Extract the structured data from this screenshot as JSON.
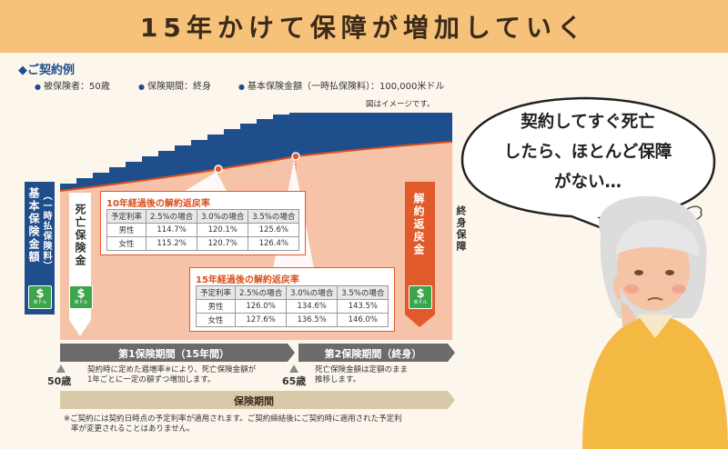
{
  "banner": {
    "title": "15年かけて保障が増加していく"
  },
  "example": {
    "title": "◆ご契約例",
    "conditions": [
      "被保険者：50歳",
      "保険期間：終身",
      "基本保険金額（一時払保険料）：100,000米ドル"
    ],
    "image_note": "図はイメージです。"
  },
  "labels": {
    "basic": "基本保険金額",
    "basic_sub": "（一時払保険料）",
    "death": "死亡保険金",
    "surrender": "解約返戻金",
    "lifetime": "終身保障",
    "dollar": "$",
    "dollar_unit": "米ドル"
  },
  "table10": {
    "title": "10年経過後の解約返戻率",
    "header": [
      "予定利率",
      "2.5%の場合",
      "3.0%の場合",
      "3.5%の場合"
    ],
    "rows": [
      [
        "男性",
        "114.7%",
        "120.1%",
        "125.6%"
      ],
      [
        "女性",
        "115.2%",
        "120.7%",
        "126.4%"
      ]
    ]
  },
  "table15": {
    "title": "15年経過後の解約返戻率",
    "header": [
      "予定利率",
      "2.5%の場合",
      "3.0%の場合",
      "3.5%の場合"
    ],
    "rows": [
      [
        "男性",
        "126.0%",
        "134.6%",
        "143.5%"
      ],
      [
        "女性",
        "127.6%",
        "136.5%",
        "146.0%"
      ]
    ]
  },
  "periods": {
    "first": "第1保険期間（15年間）",
    "second": "第2保険期間（終身）",
    "first_desc": [
      "契約時に定めた逓増率※により、死亡保険金額が",
      "1年ごとに一定の額ずつ増加します。"
    ],
    "second_desc": [
      "死亡保険金額は定額のまま",
      "推移します。"
    ],
    "age_start": "50歳",
    "age_end": "65歳",
    "total": "保険期間"
  },
  "footnote": [
    "※ご契約には契約日時点の予定利率が適用されます。ご契約締結後にご契約時に適用された予定利",
    "率が変更されることはありません。"
  ],
  "bubble": {
    "lines": [
      "契約してすぐ死亡",
      "したら、ほとんど保障",
      "がない…"
    ]
  },
  "colors": {
    "navy": "#1f4e8c",
    "salmon": "#f6c2a8",
    "orange_red": "#e05a2a",
    "green": "#3aa54a",
    "banner": "#f6c27a"
  }
}
